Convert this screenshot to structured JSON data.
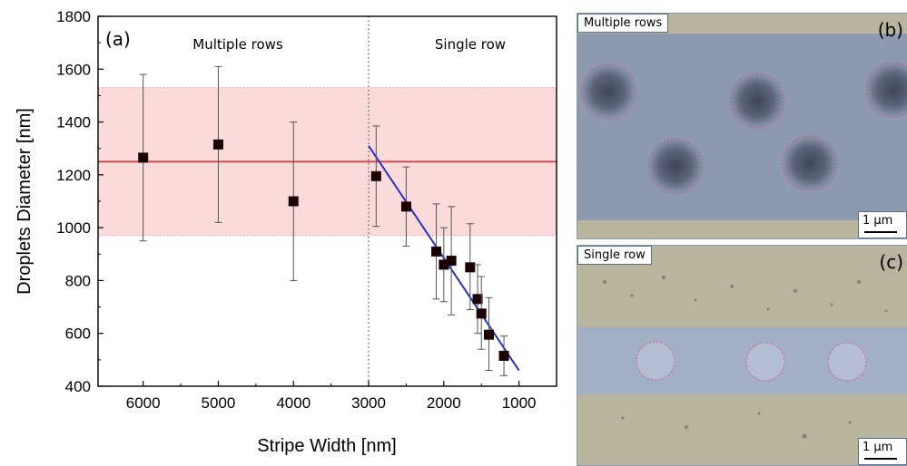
{
  "chart_data": {
    "type": "scatter",
    "xlabel": "Stripe Width [nm]",
    "ylabel": "Droplets Diameter [nm]",
    "xlim": [
      6600,
      500
    ],
    "ylim": [
      400,
      1800
    ],
    "x_reversed": true,
    "x_ticks": [
      6000,
      5000,
      4000,
      3000,
      2000,
      1000
    ],
    "y_ticks": [
      400,
      600,
      800,
      1000,
      1200,
      1400,
      1600,
      1800
    ],
    "panel_label": "(a)",
    "annotations": [
      "Multiple rows",
      "Single row"
    ],
    "divider_x": 3000,
    "points": [
      {
        "x": 6000,
        "y": 1265,
        "err_low": 950,
        "err_high": 1580
      },
      {
        "x": 5000,
        "y": 1315,
        "err_low": 1020,
        "err_high": 1610
      },
      {
        "x": 4000,
        "y": 1100,
        "err_low": 800,
        "err_high": 1400
      },
      {
        "x": 2900,
        "y": 1195,
        "err_low": 1005,
        "err_high": 1385
      },
      {
        "x": 2500,
        "y": 1080,
        "err_low": 930,
        "err_high": 1230
      },
      {
        "x": 2100,
        "y": 910,
        "err_low": 730,
        "err_high": 1090
      },
      {
        "x": 2000,
        "y": 860,
        "err_low": 720,
        "err_high": 1000
      },
      {
        "x": 1900,
        "y": 875,
        "err_low": 670,
        "err_high": 1080
      },
      {
        "x": 1650,
        "y": 850,
        "err_low": 690,
        "err_high": 1015
      },
      {
        "x": 1550,
        "y": 730,
        "err_low": 600,
        "err_high": 860
      },
      {
        "x": 1500,
        "y": 675,
        "err_low": 540,
        "err_high": 815
      },
      {
        "x": 1400,
        "y": 595,
        "err_low": 460,
        "err_high": 735
      },
      {
        "x": 1200,
        "y": 515,
        "err_low": 440,
        "err_high": 590
      }
    ],
    "mean_line": {
      "y": 1250,
      "color": "#e03030"
    },
    "band": {
      "y_low": 970,
      "y_high": 1530,
      "color": "#fbdada"
    },
    "fit_line": {
      "x": [
        3000,
        1000
      ],
      "y": [
        1310,
        460
      ],
      "color": "#2233cc"
    }
  },
  "panels": [
    {
      "id": "(b)",
      "tag": "Multiple rows",
      "scale": "1 µm"
    },
    {
      "id": "(c)",
      "tag": "Single row",
      "scale": "1 µm"
    }
  ]
}
